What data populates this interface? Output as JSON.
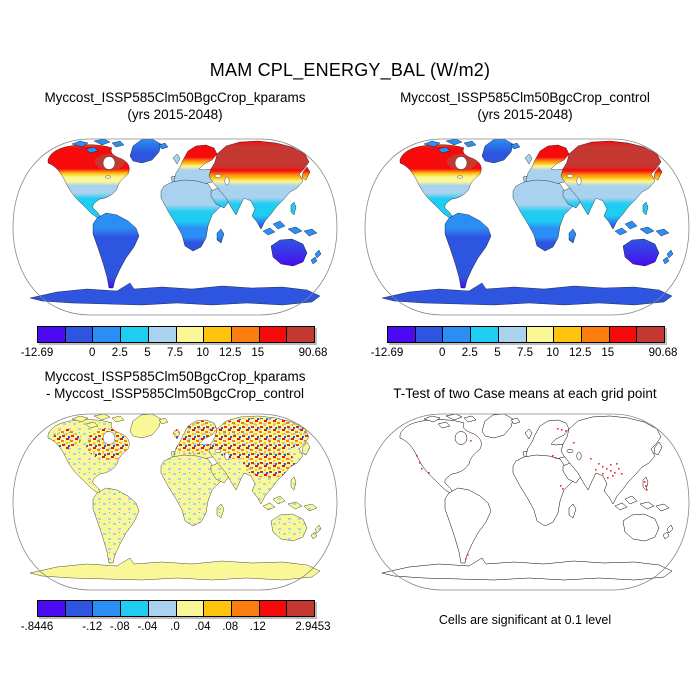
{
  "title": "MAM CPL_ENERGY_BAL (W/m2)",
  "palette": {
    "colors": [
      "#4B0AF2",
      "#2E55E0",
      "#2B8EF5",
      "#1FCCF2",
      "#A8D2EE",
      "#FAF896",
      "#FEC30D",
      "#FB7D10",
      "#F70A0C",
      "#C53832"
    ],
    "outline_gray": "#888888",
    "dot_red": "#F22727"
  },
  "panels": {
    "kparams": {
      "title_line1": "Myccost_ISSP585Clm50BgcCrop_kparams",
      "title_line2": "(yrs 2015-2048)",
      "colorbar": {
        "labels": [
          "-12.69",
          "0",
          "2.5",
          "5",
          "7.5",
          "10",
          "12.5",
          "15",
          "90.68"
        ],
        "positions": [
          0,
          0.2,
          0.3,
          0.4,
          0.5,
          0.6,
          0.7,
          0.8,
          1
        ]
      }
    },
    "control": {
      "title_line1": "Myccost_ISSP585Clm50BgcCrop_control",
      "title_line2": "(yrs 2015-2048)",
      "colorbar": {
        "labels": [
          "-12.69",
          "0",
          "2.5",
          "5",
          "7.5",
          "10",
          "12.5",
          "15",
          "90.68"
        ],
        "positions": [
          0,
          0.2,
          0.3,
          0.4,
          0.5,
          0.6,
          0.7,
          0.8,
          1
        ]
      }
    },
    "diff": {
      "title_line1": "Myccost_ISSP585Clm50BgcCrop_kparams",
      "title_line2": "- Myccost_ISSP585Clm50BgcCrop_control",
      "colorbar": {
        "labels": [
          "-.8446",
          "-.12",
          "-.08",
          "-.04",
          ".0",
          ".04",
          ".08",
          ".12",
          "2.9453"
        ],
        "positions": [
          0,
          0.2,
          0.3,
          0.4,
          0.5,
          0.6,
          0.7,
          0.8,
          1
        ]
      }
    },
    "ttest": {
      "title": "T-Test of two Case means at each grid point",
      "note": "Cells are significant at 0.1 level"
    }
  },
  "chart_data": [
    {
      "type": "heatmap",
      "title": "Myccost_ISSP585Clm50BgcCrop_kparams (yrs 2015-2048)",
      "units": "W/m2",
      "colorbar_ticks": [
        "-12.69",
        "0",
        "2.5",
        "5",
        "7.5",
        "10",
        "12.5",
        "15",
        "90.68"
      ],
      "min": -12.69,
      "max": 90.68
    },
    {
      "type": "heatmap",
      "title": "Myccost_ISSP585Clm50BgcCrop_control (yrs 2015-2048)",
      "units": "W/m2",
      "colorbar_ticks": [
        "-12.69",
        "0",
        "2.5",
        "5",
        "7.5",
        "10",
        "12.5",
        "15",
        "90.68"
      ],
      "min": -12.69,
      "max": 90.68
    },
    {
      "type": "heatmap",
      "title": "Myccost_ISSP585Clm50BgcCrop_kparams - Myccost_ISSP585Clm50BgcCrop_control",
      "units": "W/m2",
      "colorbar_ticks": [
        "-.8446",
        "-.12",
        "-.08",
        "-.04",
        ".0",
        ".04",
        ".08",
        ".12",
        "2.9453"
      ],
      "min": -0.8446,
      "max": 2.9453
    },
    {
      "type": "map",
      "title": "T-Test of two Case means at each grid point",
      "annotation": "Cells are significant at 0.1 level"
    }
  ]
}
